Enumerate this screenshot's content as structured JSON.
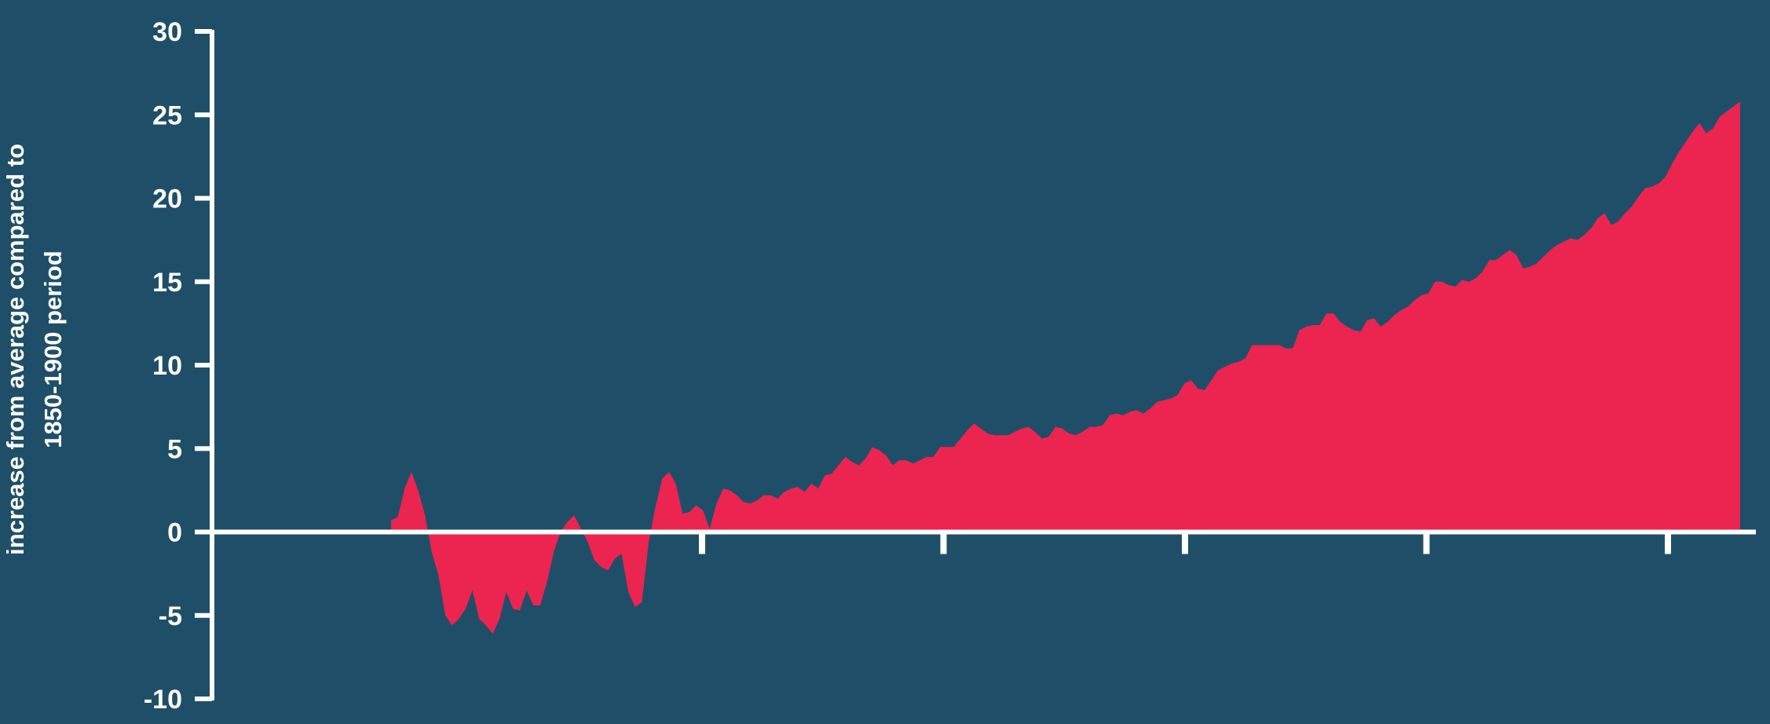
{
  "chart_data": {
    "type": "area",
    "title": "",
    "xlabel": "",
    "ylabel_lines": [
      "increase from average compared to",
      "1850-1900 period"
    ],
    "ylim": [
      -10,
      30
    ],
    "yticks": [
      30,
      25,
      20,
      15,
      10,
      5,
      0,
      -5,
      -10
    ],
    "ytick_labels": [
      "30",
      "25",
      "20",
      "15",
      "10",
      "5",
      "0",
      "-5",
      "-10"
    ],
    "x_ticks_unlabeled": 5,
    "grid": false,
    "legend": "none",
    "colors": {
      "background": "#1f4f68",
      "fill": "#ec2450",
      "axis": "#ffffff"
    },
    "series": [
      {
        "values": [
          0.7,
          0.9,
          2.6,
          3.6,
          2.5,
          1.0,
          -1.2,
          -2.6,
          -5.0,
          -5.6,
          -5.2,
          -4.6,
          -3.5,
          -5.2,
          -5.6,
          -6.1,
          -5.2,
          -3.6,
          -4.6,
          -4.7,
          -3.5,
          -4.4,
          -4.4,
          -3.0,
          -1.2,
          0.0,
          0.6,
          1.0,
          0.2,
          -0.6,
          -1.7,
          -2.1,
          -2.3,
          -1.6,
          -1.3,
          -3.6,
          -4.5,
          -4.2,
          -0.6,
          1.5,
          3.2,
          3.6,
          2.9,
          1.1,
          1.2,
          1.6,
          1.3,
          0.2,
          1.7,
          2.6,
          2.5,
          2.2,
          1.8,
          1.7,
          1.9,
          2.2,
          2.2,
          2.0,
          2.4,
          2.6,
          2.7,
          2.4,
          2.9,
          2.6,
          3.4,
          3.5,
          4.0,
          4.5,
          4.2,
          4.0,
          4.4,
          5.1,
          4.9,
          4.6,
          4.0,
          4.3,
          4.3,
          4.1,
          4.3,
          4.5,
          4.5,
          5.1,
          5.1,
          5.1,
          5.6,
          6.1,
          6.5,
          6.2,
          5.9,
          5.8,
          5.8,
          5.8,
          6.0,
          6.2,
          6.3,
          6.0,
          5.6,
          5.7,
          6.3,
          6.2,
          5.9,
          5.8,
          6.0,
          6.3,
          6.3,
          6.4,
          7.0,
          7.1,
          7.0,
          7.2,
          7.3,
          7.1,
          7.4,
          7.8,
          7.9,
          8.0,
          8.2,
          8.9,
          9.1,
          8.6,
          8.5,
          9.1,
          9.7,
          9.9,
          10.1,
          10.2,
          10.4,
          11.2,
          11.2,
          11.2,
          11.2,
          11.2,
          11.0,
          11.0,
          12.1,
          12.3,
          12.4,
          12.4,
          13.1,
          13.1,
          12.6,
          12.3,
          12.1,
          12.0,
          12.7,
          12.8,
          12.3,
          12.6,
          13.0,
          13.3,
          13.5,
          13.9,
          14.2,
          14.3,
          15.0,
          15.0,
          14.8,
          14.7,
          15.1,
          15.0,
          15.2,
          15.6,
          16.3,
          16.3,
          16.6,
          16.9,
          16.6,
          15.8,
          15.9,
          16.1,
          16.5,
          16.9,
          17.2,
          17.4,
          17.6,
          17.5,
          17.8,
          18.2,
          18.8,
          19.1,
          18.4,
          18.6,
          19.1,
          19.5,
          20.1,
          20.6,
          20.7,
          20.9,
          21.3,
          22.1,
          22.8,
          23.4,
          24.0,
          24.5,
          23.9,
          24.2,
          24.9,
          25.2,
          25.5,
          25.8
        ]
      }
    ]
  }
}
